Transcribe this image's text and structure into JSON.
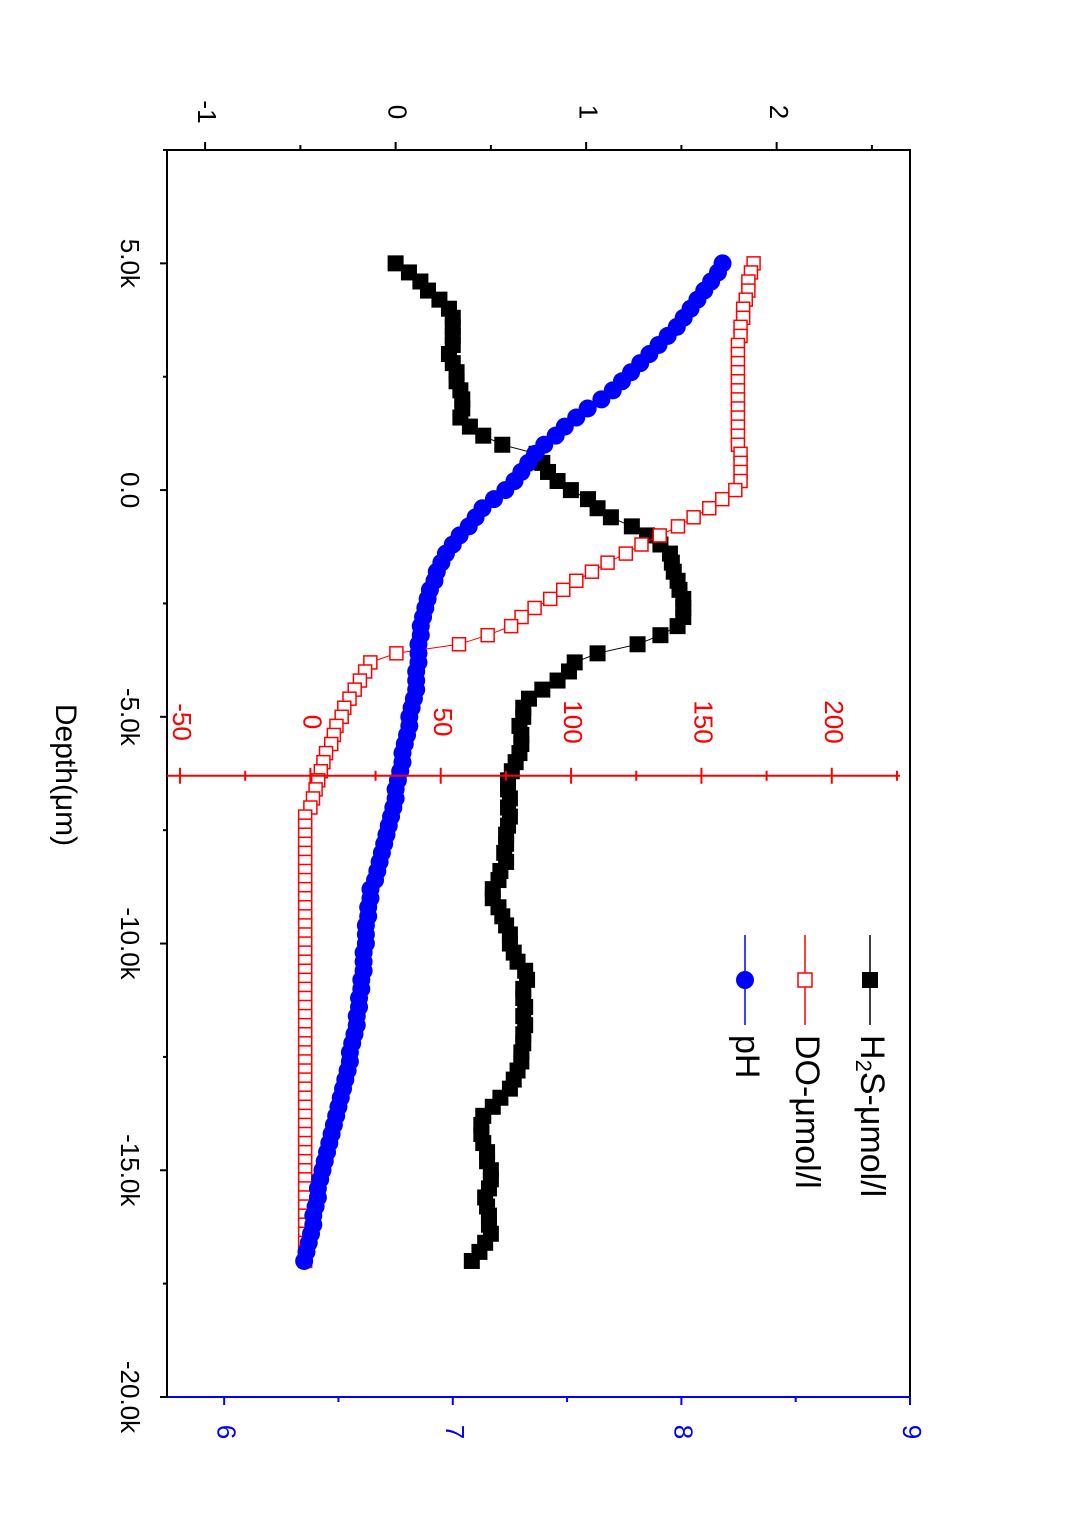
{
  "chart_data": {
    "type": "scatter",
    "rotation": "rotated 90 degrees clockwise",
    "xlabel": "Depth(μm)",
    "x_axis": {
      "range": [
        -20000,
        7500
      ],
      "ticks": [
        5000,
        0,
        -5000,
        -10000,
        -15000,
        -20000
      ],
      "tick_labels": [
        "5.0k",
        "0.0",
        "-5.0k",
        "-10.0k",
        "-15.0k",
        "-20.0k"
      ]
    },
    "axes": {
      "h2s": {
        "color": "#000000",
        "range": [
          -1.2,
          2.7
        ],
        "ticks": [
          -1,
          0,
          1,
          2
        ],
        "tick_labels": [
          "-1",
          "0",
          "1",
          "2"
        ]
      },
      "do": {
        "color": "#ff0000",
        "range": [
          -55,
          230
        ],
        "ticks": [
          -50,
          0,
          50,
          100,
          150,
          200
        ],
        "tick_labels": [
          "-50",
          "0",
          "50",
          "100",
          "150",
          "200"
        ],
        "crosses_at": -6300
      },
      "ph": {
        "color": "#0000ff",
        "range": [
          5.75,
          9
        ],
        "ticks": [
          6,
          7,
          8,
          9
        ],
        "tick_labels": [
          "6",
          "7",
          "8",
          "9"
        ]
      }
    },
    "legend": {
      "placement": "top-right",
      "entries": [
        {
          "key": "h2s",
          "main": "H",
          "sub": "2",
          "rest": "S-μmol/l",
          "marker": "filled-square",
          "color": "#000000"
        },
        {
          "key": "do",
          "main": "DO-μmol/l",
          "sub": "",
          "rest": "",
          "marker": "open-square",
          "color": "#ff0000"
        },
        {
          "key": "ph",
          "main": "pH",
          "sub": "",
          "rest": "",
          "marker": "filled-circle",
          "color": "#0000ff"
        }
      ]
    },
    "series": [
      {
        "key": "h2s",
        "marker": "filled-square",
        "color": "#000000",
        "x": [
          5000,
          4800,
          4600,
          4400,
          4200,
          4000,
          3800,
          3600,
          3400,
          3200,
          3000,
          2800,
          2600,
          2400,
          2200,
          2000,
          1800,
          1600,
          1400,
          1200,
          1000,
          800,
          600,
          400,
          200,
          0,
          -200,
          -400,
          -600,
          -800,
          -1000,
          -1200,
          -1400,
          -1600,
          -1800,
          -2000,
          -2200,
          -2400,
          -2600,
          -2800,
          -3000,
          -3200,
          -3400,
          -3600,
          -3800,
          -4000,
          -4200,
          -4400,
          -4600,
          -4800,
          -5000,
          -5200,
          -5400,
          -5600,
          -5800,
          -6000,
          -6200,
          -6400,
          -6600,
          -6800,
          -7000,
          -7200,
          -7400,
          -7600,
          -7800,
          -8000,
          -8200,
          -8400,
          -8600,
          -8800,
          -9000,
          -9200,
          -9400,
          -9600,
          -9800,
          -10000,
          -10200,
          -10400,
          -10600,
          -10800,
          -11000,
          -11200,
          -11400,
          -11600,
          -11800,
          -12000,
          -12200,
          -12400,
          -12600,
          -12800,
          -13000,
          -13200,
          -13400,
          -13600,
          -13800,
          -14000,
          -14200,
          -14400,
          -14600,
          -14800,
          -15000,
          -15200,
          -15400,
          -15600,
          -15800,
          -16000,
          -16200,
          -16400,
          -16600,
          -16800,
          -17000
        ],
        "y": [
          0.0,
          0.07,
          0.13,
          0.17,
          0.23,
          0.28,
          0.3,
          0.3,
          0.3,
          0.3,
          0.28,
          0.3,
          0.32,
          0.32,
          0.34,
          0.35,
          0.35,
          0.34,
          0.39,
          0.46,
          0.56,
          0.74,
          0.77,
          0.8,
          0.85,
          0.92,
          1.01,
          1.06,
          1.13,
          1.24,
          1.32,
          1.39,
          1.44,
          1.45,
          1.46,
          1.48,
          1.49,
          1.51,
          1.51,
          1.51,
          1.48,
          1.39,
          1.27,
          1.06,
          0.94,
          0.91,
          0.85,
          0.77,
          0.7,
          0.67,
          0.67,
          0.65,
          0.66,
          0.66,
          0.65,
          0.63,
          0.61,
          0.59,
          0.59,
          0.6,
          0.59,
          0.6,
          0.59,
          0.58,
          0.58,
          0.57,
          0.58,
          0.55,
          0.54,
          0.51,
          0.51,
          0.54,
          0.56,
          0.58,
          0.6,
          0.6,
          0.62,
          0.64,
          0.68,
          0.69,
          0.67,
          0.67,
          0.68,
          0.67,
          0.68,
          0.67,
          0.67,
          0.66,
          0.66,
          0.64,
          0.62,
          0.6,
          0.55,
          0.51,
          0.46,
          0.45,
          0.45,
          0.46,
          0.48,
          0.48,
          0.5,
          0.5,
          0.49,
          0.47,
          0.48,
          0.49,
          0.49,
          0.5,
          0.47,
          0.44,
          0.4
        ]
      },
      {
        "key": "do",
        "marker": "open-square",
        "color": "#ff0000",
        "x": [
          5000,
          4800,
          4600,
          4400,
          4200,
          4000,
          3800,
          3600,
          3400,
          3200,
          3000,
          2800,
          2600,
          2400,
          2200,
          2000,
          1800,
          1600,
          1400,
          1200,
          1000,
          800,
          600,
          400,
          200,
          0,
          -200,
          -400,
          -600,
          -800,
          -1000,
          -1200,
          -1400,
          -1600,
          -1800,
          -2000,
          -2200,
          -2400,
          -2600,
          -2800,
          -3000,
          -3200,
          -3400,
          -3600,
          -3800,
          -4000,
          -4200,
          -4400,
          -4600,
          -4800,
          -5000,
          -5200,
          -5400,
          -5600,
          -5800,
          -6000,
          -6200,
          -6400,
          -6600,
          -6800,
          -7000,
          -7200,
          -7400,
          -7600,
          -7800,
          -8000,
          -8200,
          -8400,
          -8600,
          -8800,
          -9000,
          -9200,
          -9400,
          -9600,
          -9800,
          -10000,
          -10200,
          -10400,
          -10600,
          -10800,
          -11000,
          -11200,
          -11400,
          -11600,
          -11800,
          -12000,
          -12200,
          -12400,
          -12600,
          -12800,
          -13000,
          -13200,
          -13400,
          -13600,
          -13800,
          -14000,
          -14200,
          -14400,
          -14600,
          -14800,
          -15000,
          -15200,
          -15400,
          -15600,
          -15800,
          -16000,
          -16200,
          -16400,
          -16600,
          -16800,
          -17000
        ],
        "y": [
          170,
          169,
          168,
          168,
          167,
          166,
          166,
          165,
          165,
          164,
          164,
          164,
          164,
          164,
          164,
          164,
          164,
          164,
          164,
          164,
          164,
          165,
          165,
          165,
          165,
          163,
          158,
          153,
          147,
          141,
          134,
          127,
          121,
          114,
          108,
          102,
          97,
          92,
          86,
          81,
          77,
          68,
          57,
          33,
          23,
          21,
          19,
          17,
          15,
          13,
          12,
          10,
          9,
          8,
          6,
          5,
          4,
          3,
          2,
          1,
          0,
          -2,
          -2,
          -2,
          -2,
          -2,
          -2,
          -2,
          -2,
          -2,
          -2,
          -2,
          -2,
          -2,
          -2,
          -2,
          -2,
          -2,
          -2,
          -2,
          -2,
          -2,
          -2,
          -2,
          -2,
          -2,
          -2,
          -2,
          -2,
          -2,
          -2,
          -2,
          -2,
          -2,
          -2,
          -2,
          -2,
          -2,
          -2,
          -2,
          -2,
          -2,
          -2,
          -2,
          -2,
          -2,
          -2,
          -2,
          -2,
          -2,
          -2
        ]
      },
      {
        "key": "ph",
        "marker": "filled-circle",
        "color": "#0000ff",
        "x": [
          5000,
          4800,
          4600,
          4400,
          4200,
          4000,
          3800,
          3600,
          3400,
          3200,
          3000,
          2800,
          2600,
          2400,
          2200,
          2000,
          1800,
          1600,
          1400,
          1200,
          1000,
          800,
          600,
          400,
          200,
          0,
          -200,
          -400,
          -600,
          -800,
          -1000,
          -1200,
          -1400,
          -1600,
          -1800,
          -2000,
          -2200,
          -2400,
          -2600,
          -2800,
          -3000,
          -3200,
          -3400,
          -3600,
          -3800,
          -4000,
          -4200,
          -4400,
          -4600,
          -4800,
          -5000,
          -5200,
          -5400,
          -5600,
          -5800,
          -6000,
          -6200,
          -6400,
          -6600,
          -6800,
          -7000,
          -7200,
          -7400,
          -7600,
          -7800,
          -8000,
          -8200,
          -8400,
          -8600,
          -8800,
          -9000,
          -9200,
          -9400,
          -9600,
          -9800,
          -10000,
          -10200,
          -10400,
          -10600,
          -10800,
          -11000,
          -11200,
          -11400,
          -11600,
          -11800,
          -12000,
          -12200,
          -12400,
          -12600,
          -12800,
          -13000,
          -13200,
          -13400,
          -13600,
          -13800,
          -14000,
          -14200,
          -14400,
          -14600,
          -14800,
          -15000,
          -15200,
          -15400,
          -15600,
          -15800,
          -16000,
          -16200,
          -16400,
          -16600,
          -16800,
          -17000
        ],
        "y": [
          8.18,
          8.16,
          8.13,
          8.1,
          8.07,
          8.04,
          8.01,
          7.98,
          7.94,
          7.9,
          7.86,
          7.82,
          7.78,
          7.74,
          7.7,
          7.65,
          7.59,
          7.54,
          7.49,
          7.45,
          7.4,
          7.36,
          7.33,
          7.3,
          7.27,
          7.23,
          7.18,
          7.13,
          7.1,
          7.07,
          7.03,
          7.0,
          6.97,
          6.95,
          6.93,
          6.92,
          6.9,
          6.89,
          6.88,
          6.87,
          6.86,
          6.86,
          6.85,
          6.85,
          6.85,
          6.84,
          6.84,
          6.84,
          6.83,
          6.82,
          6.81,
          6.81,
          6.8,
          6.79,
          6.78,
          6.78,
          6.77,
          6.76,
          6.75,
          6.75,
          6.74,
          6.73,
          6.72,
          6.71,
          6.7,
          6.69,
          6.68,
          6.67,
          6.66,
          6.64,
          6.64,
          6.63,
          6.63,
          6.62,
          6.62,
          6.62,
          6.61,
          6.61,
          6.61,
          6.6,
          6.6,
          6.59,
          6.59,
          6.58,
          6.58,
          6.57,
          6.56,
          6.55,
          6.55,
          6.54,
          6.53,
          6.52,
          6.51,
          6.5,
          6.49,
          6.48,
          6.47,
          6.46,
          6.45,
          6.44,
          6.43,
          6.42,
          6.41,
          6.41,
          6.4,
          6.39,
          6.39,
          6.38,
          6.37,
          6.36,
          6.35
        ]
      }
    ]
  }
}
